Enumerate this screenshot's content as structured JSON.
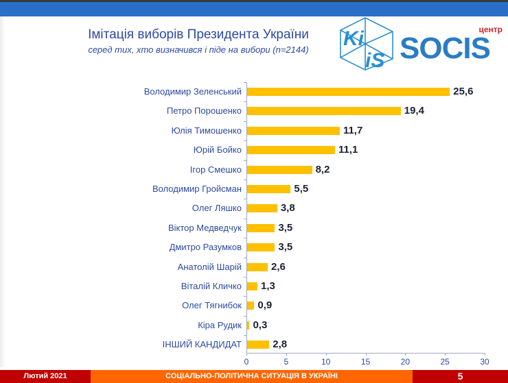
{
  "header": {
    "title": "Імітація виборів Президента України",
    "subtitle": "серед тих, хто визначився і піде на вибори (n=2144)"
  },
  "logos": {
    "kiis": {
      "text_top": "Ki",
      "text_bottom": "iS",
      "color": "#2a8fd0"
    },
    "socis": {
      "word": "SOCIS",
      "prefix": "центр",
      "color": "#2a7cc7",
      "prefix_color": "#d2232a"
    }
  },
  "chart_data": {
    "type": "bar",
    "orientation": "horizontal",
    "title": "Імітація виборів Президента України",
    "subtitle": "серед тих, хто визначився і піде на вибори (n=2144)",
    "categories": [
      "Володимир Зеленський",
      "Петро Порошенко",
      "Юлія Тимошенко",
      "Юрій Бойко",
      "Ігор Смешко",
      "Володимир Гройсман",
      "Олег Ляшко",
      "Віктор Медведчук",
      "Дмитро Разумков",
      "Анатолій Шарій",
      "Віталій Кличко",
      "Олег Тягнибок",
      "Кіра Рудик",
      "ІНШИЙ КАНДИДАТ"
    ],
    "values": [
      25.6,
      19.4,
      11.7,
      11.1,
      8.2,
      5.5,
      3.8,
      3.5,
      3.5,
      2.6,
      1.3,
      0.9,
      0.3,
      2.8
    ],
    "value_labels": [
      "25,6",
      "19,4",
      "11,7",
      "11,1",
      "8,2",
      "5,5",
      "3,8",
      "3,5",
      "3,5",
      "2,6",
      "1,3",
      "0,9",
      "0,3",
      "2,8"
    ],
    "xlabel": "",
    "ylabel": "",
    "xlim": [
      0,
      30
    ],
    "xticks": [
      "0",
      "5",
      "10",
      "15",
      "20",
      "25",
      "30"
    ],
    "grid": false,
    "legend": null,
    "bar_color": "#ffc000"
  },
  "footer": {
    "date": "Лютий 2021",
    "section": "СОЦІАЛЬНО-ПОЛІТИЧНА СИТУАЦІЯ В УКРАЇНІ",
    "page_number": "5",
    "colors": {
      "red": "#c00000",
      "orange": "#ff6600"
    }
  }
}
